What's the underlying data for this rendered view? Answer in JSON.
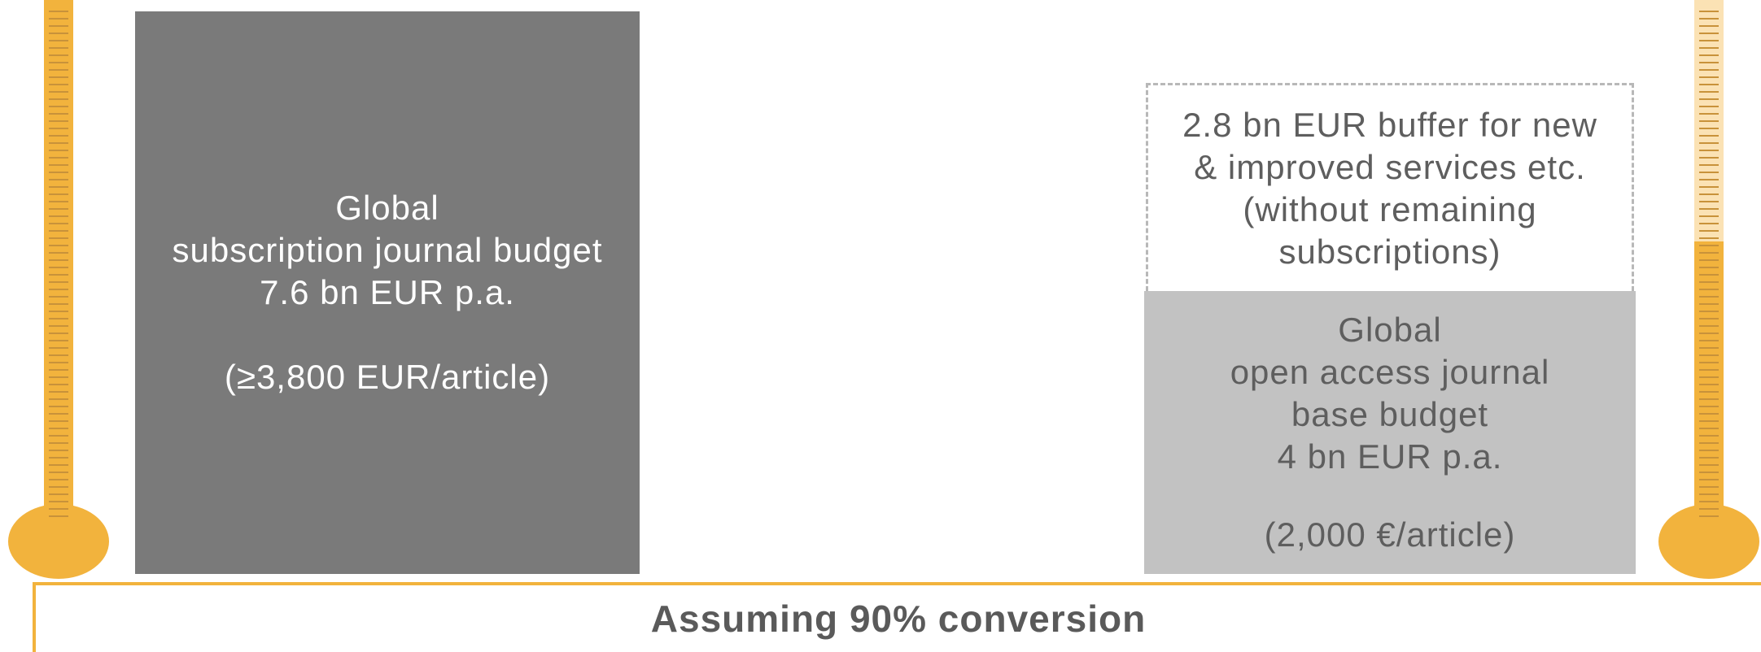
{
  "colors": {
    "thermometer_orange": "#f2b33d",
    "thermometer_light": "#fbe2b4",
    "subscription_box": "#7a7a7a",
    "open_access_box": "#c2c2c2"
  },
  "left_thermometer": {
    "fill_level": 1.0
  },
  "right_thermometer": {
    "fill_level": 0.55
  },
  "subscription_box": {
    "lines": [
      "Global",
      "subscription journal budget",
      "7.6 bn EUR p.a."
    ],
    "per_article": "(≥3,800 EUR/article)"
  },
  "buffer_box": {
    "lines": [
      "2.8 bn EUR buffer for new",
      "& improved services etc.",
      "(without remaining",
      "subscriptions)"
    ]
  },
  "open_access_box": {
    "lines": [
      "Global",
      "open access journal",
      "base budget",
      "4 bn EUR p.a."
    ],
    "per_article": "(2,000 €/article)"
  },
  "footer": {
    "label": "Assuming 90% conversion"
  }
}
